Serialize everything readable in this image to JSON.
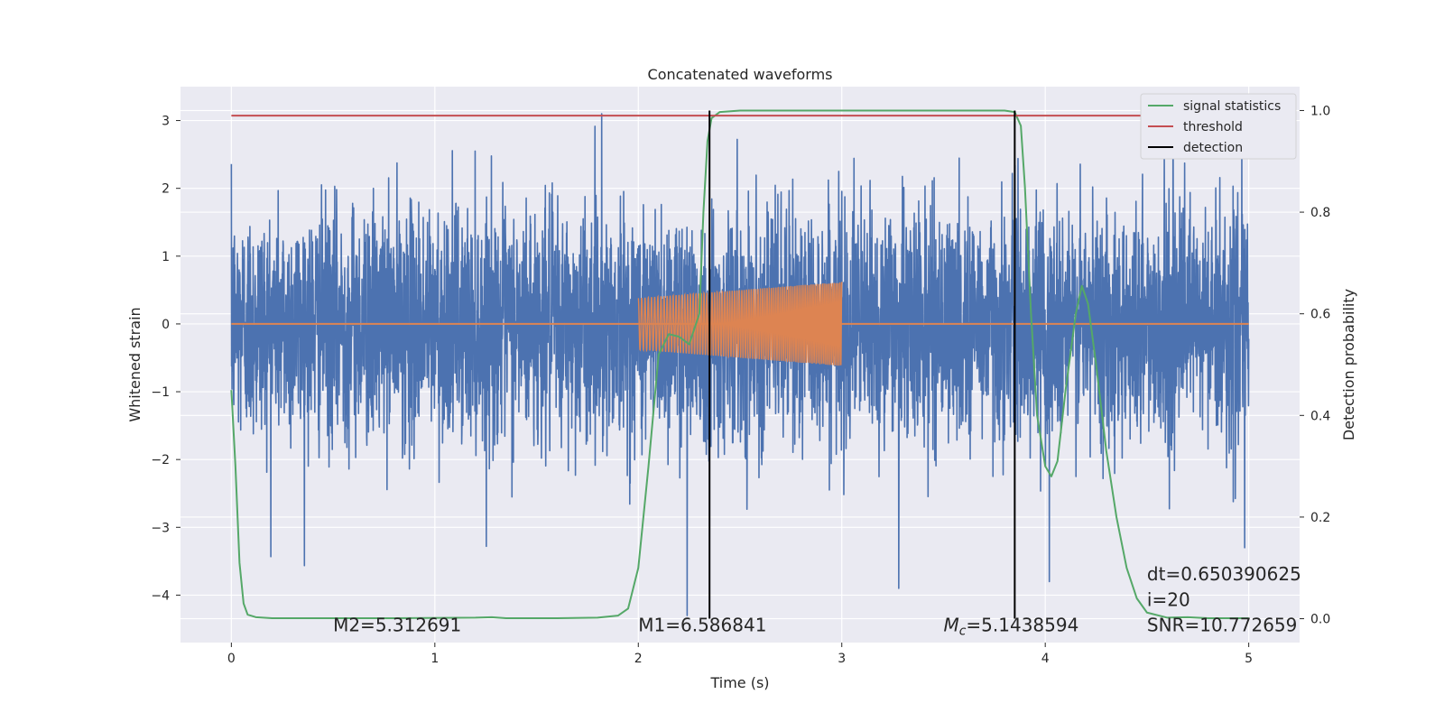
{
  "chart_data": {
    "type": "line",
    "title": "Concatenated waveforms",
    "xlabel": "Time (s)",
    "ylabel": "Whitened strain",
    "y2label": "Detection probability",
    "xlim": [
      -0.25,
      5.25
    ],
    "ylim": [
      -4.7,
      3.5
    ],
    "y2lim": [
      -0.047,
      1.047
    ],
    "xticks": [
      0,
      1,
      2,
      3,
      4,
      5
    ],
    "yticks": [
      -4,
      -3,
      -2,
      -1,
      0,
      1,
      2,
      3
    ],
    "y2ticks": [
      0.0,
      0.2,
      0.4,
      0.6,
      0.8,
      1.0
    ],
    "grid": true,
    "legend_position": "top-right",
    "colors": {
      "noise": "#4c72b0",
      "template": "#dd8452",
      "signal_statistics": "#55a868",
      "threshold": "#c44e52",
      "detection": "#000000",
      "background": "#eaeaf2",
      "grid": "#ffffff"
    },
    "series": [
      {
        "name": "signal statistics",
        "axis": "right",
        "x": [
          0.0,
          0.02,
          0.04,
          0.06,
          0.08,
          0.12,
          0.2,
          0.4,
          0.8,
          1.2,
          1.28,
          1.35,
          1.6,
          1.8,
          1.9,
          1.95,
          2.0,
          2.05,
          2.1,
          2.15,
          2.2,
          2.25,
          2.3,
          2.32,
          2.34,
          2.36,
          2.4,
          2.5,
          3.0,
          3.5,
          3.8,
          3.85,
          3.88,
          3.9,
          3.93,
          3.96,
          4.0,
          4.03,
          4.06,
          4.1,
          4.15,
          4.18,
          4.21,
          4.25,
          4.3,
          4.35,
          4.4,
          4.45,
          4.5,
          4.6,
          4.7,
          4.8,
          5.0
        ],
        "y": [
          0.45,
          0.3,
          0.11,
          0.03,
          0.008,
          0.003,
          0.001,
          0.001,
          0.001,
          0.002,
          0.003,
          0.001,
          0.001,
          0.002,
          0.006,
          0.02,
          0.1,
          0.3,
          0.52,
          0.56,
          0.555,
          0.54,
          0.6,
          0.8,
          0.94,
          0.985,
          0.997,
          1.0,
          1.0,
          1.0,
          1.0,
          0.997,
          0.97,
          0.85,
          0.6,
          0.4,
          0.3,
          0.28,
          0.31,
          0.45,
          0.6,
          0.655,
          0.62,
          0.5,
          0.33,
          0.2,
          0.1,
          0.04,
          0.012,
          0.002,
          0.003,
          0.001,
          0.001
        ]
      },
      {
        "name": "threshold",
        "axis": "right",
        "type": "hline",
        "x_range": [
          0,
          5
        ],
        "value": 0.99
      },
      {
        "name": "detection",
        "axis": "right",
        "type": "vlines",
        "x": [
          2.35,
          3.85
        ],
        "y_range": [
          0,
          1.0
        ]
      },
      {
        "name": "",
        "axis": "left",
        "description_kind": "whitened noise",
        "x_range": [
          0,
          5
        ],
        "envelope_max": 3.1,
        "envelope_min": -4.3,
        "notable_peaks": [
          {
            "x": 1.82,
            "y": 3.1
          },
          {
            "x": 2.24,
            "y": -4.3
          },
          {
            "x": 3.28,
            "y": -3.9
          },
          {
            "x": 4.02,
            "y": -3.8
          },
          {
            "x": 4.98,
            "y": -3.3
          }
        ]
      },
      {
        "name": "",
        "axis": "left",
        "description_kind": "injected waveform",
        "x_range": [
          2.0,
          3.0
        ],
        "amplitude_start": 0.38,
        "amplitude_end": 0.62,
        "baseline_x_range": [
          0,
          5
        ],
        "baseline_value": 0.0
      }
    ],
    "annotations": [
      {
        "text": "M2=5.312691",
        "x": 0.5,
        "y": 0.0
      },
      {
        "text": "M1=6.586841",
        "x": 2.0,
        "y": 0.0
      },
      {
        "text_prefix": "M",
        "text_sub": "c",
        "text_suffix": "=5.1438594",
        "x": 3.5,
        "y": 0.0
      },
      {
        "text": "dt=0.650390625",
        "x": 4.5,
        "y": 0.1
      },
      {
        "text": " i=20",
        "x": 4.5,
        "y": 0.05
      },
      {
        "text": "SNR=10.772659",
        "x": 4.5,
        "y": 0.0
      }
    ],
    "legend": [
      "signal statistics",
      "threshold",
      "detection"
    ]
  }
}
